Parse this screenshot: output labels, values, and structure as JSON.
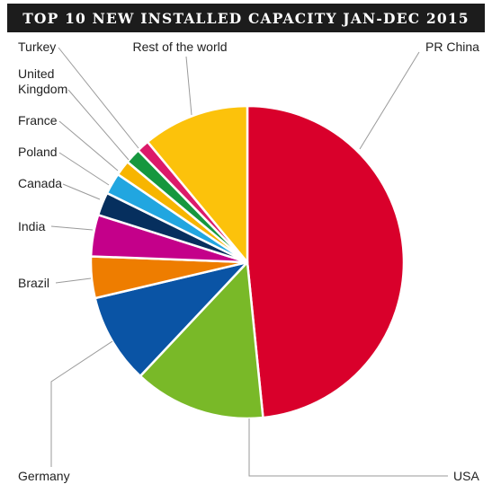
{
  "chart_data": {
    "type": "pie",
    "title": "TOP 10 NEW INSTALLED CAPACITY JAN-DEC 2015",
    "slices": [
      {
        "label": "PR China",
        "value": 48.4,
        "color": "#d9002b",
        "display": [
          "PR China"
        ]
      },
      {
        "label": "USA",
        "value": 13.6,
        "color": "#79b928",
        "display": [
          "USA"
        ]
      },
      {
        "label": "Germany",
        "value": 9.3,
        "color": "#0a54a5",
        "display": [
          "Germany"
        ]
      },
      {
        "label": "Brazil",
        "value": 4.3,
        "color": "#ee7d00",
        "display": [
          "Brazil"
        ]
      },
      {
        "label": "India",
        "value": 4.3,
        "color": "#c4008a",
        "display": [
          "India"
        ]
      },
      {
        "label": "Canadaa",
        "value": 2.4,
        "color": "#062f5e",
        "display": [
          "Canada"
        ]
      },
      {
        "label": "Poland",
        "value": 2.2,
        "color": "#21a6e0",
        "display": [
          "Poland"
        ]
      },
      {
        "label": "France",
        "value": 1.6,
        "color": "#f7b500",
        "display": [
          "France"
        ]
      },
      {
        "label": "United Kingdom",
        "value": 1.6,
        "color": "#15973e",
        "display": [
          "United",
          "Kingdom"
        ]
      },
      {
        "label": "Turkey",
        "value": 1.3,
        "color": "#dc1a6a",
        "display": [
          "Turkey"
        ]
      },
      {
        "label": "Rest of the world",
        "value": 11.0,
        "color": "#fcc20b",
        "display": [
          "Rest of the world"
        ]
      }
    ]
  }
}
